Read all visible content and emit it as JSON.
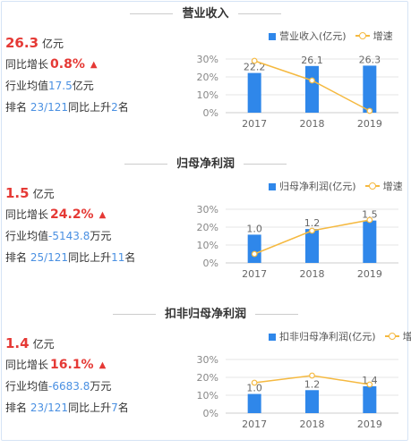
{
  "sections": [
    {
      "title": "营业收入",
      "value": "26.3",
      "value_unit": "亿元",
      "yoy_label": "同比增长",
      "yoy_value": "0.8%",
      "industry_label": "行业均值",
      "industry_value": "17.5",
      "industry_unit": "亿元",
      "rank_label": "排名",
      "rank_value": "23/121",
      "rank_change_label": "同比上升",
      "rank_change_value": "2",
      "rank_change_unit": "名",
      "legend_bar": "营业收入(亿元)",
      "legend_line": "增速"
    },
    {
      "title": "归母净利润",
      "value": "1.5",
      "value_unit": "亿元",
      "yoy_label": "同比增长",
      "yoy_value": "24.2%",
      "industry_label": "行业均值",
      "industry_value": "-5143.8",
      "industry_unit": "万元",
      "rank_label": "排名",
      "rank_value": "25/121",
      "rank_change_label": "同比上升",
      "rank_change_value": "11",
      "rank_change_unit": "名",
      "legend_bar": "归母净利润(亿元)",
      "legend_line": "增速"
    },
    {
      "title": "扣非归母净利润",
      "value": "1.4",
      "value_unit": "亿元",
      "yoy_label": "同比增长",
      "yoy_value": "16.1%",
      "industry_label": "行业均值",
      "industry_value": "-6683.8",
      "industry_unit": "万元",
      "rank_label": "排名",
      "rank_value": "23/121",
      "rank_change_label": "同比上升",
      "rank_change_value": "7",
      "rank_change_unit": "名",
      "legend_bar": "扣非归母净利润(亿元)",
      "legend_line": "增速"
    }
  ],
  "colors": {
    "bar": "#2f87ea",
    "line": "#f5b940",
    "highlight_red": "#e53935",
    "accent_blue": "#4a90e2"
  },
  "icons": {
    "trend": "arrow-up-icon"
  },
  "chart_data": [
    {
      "type": "bar",
      "categories": [
        "2017",
        "2018",
        "2019"
      ],
      "series": [
        {
          "name": "营业收入(亿元)",
          "type": "bar",
          "values": [
            22.2,
            26.1,
            26.3
          ],
          "labels": [
            "22.2",
            "26.1",
            "26.3"
          ]
        },
        {
          "name": "增速",
          "type": "line",
          "values": [
            29,
            18,
            1
          ]
        }
      ],
      "yticks": [
        "30%",
        "20%",
        "10%",
        "0%"
      ],
      "ylim_line": [
        0,
        30
      ],
      "ylim_bar": [
        0,
        30
      ]
    },
    {
      "type": "bar",
      "categories": [
        "2017",
        "2018",
        "2019"
      ],
      "series": [
        {
          "name": "归母净利润(亿元)",
          "type": "bar",
          "values": [
            1.0,
            1.2,
            1.5
          ],
          "labels": [
            "1.0",
            "1.2",
            "1.5"
          ]
        },
        {
          "name": "增速",
          "type": "line",
          "values": [
            5,
            18,
            24
          ]
        }
      ],
      "yticks": [
        "30%",
        "20%",
        "10%",
        "0%"
      ],
      "ylim_line": [
        0,
        30
      ],
      "ylim_bar": [
        0,
        1.9
      ]
    },
    {
      "type": "bar",
      "categories": [
        "2017",
        "2018",
        "2019"
      ],
      "series": [
        {
          "name": "扣非归母净利润(亿元)",
          "type": "bar",
          "values": [
            1.0,
            1.2,
            1.4
          ],
          "labels": [
            "1.0",
            "1.2",
            "1.4"
          ]
        },
        {
          "name": "增速",
          "type": "line",
          "values": [
            17,
            21,
            16
          ]
        }
      ],
      "yticks": [
        "30%",
        "20%",
        "10%",
        "0%"
      ],
      "ylim_line": [
        0,
        30
      ],
      "ylim_bar": [
        0,
        2.8
      ]
    }
  ]
}
